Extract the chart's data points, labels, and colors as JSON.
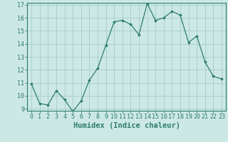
{
  "x": [
    0,
    1,
    2,
    3,
    4,
    5,
    6,
    7,
    8,
    9,
    10,
    11,
    12,
    13,
    14,
    15,
    16,
    17,
    18,
    19,
    20,
    21,
    22,
    23
  ],
  "y": [
    10.9,
    9.4,
    9.3,
    10.4,
    9.7,
    8.8,
    9.6,
    11.2,
    12.1,
    13.9,
    15.7,
    15.8,
    15.5,
    14.7,
    17.1,
    15.8,
    16.0,
    16.5,
    16.2,
    14.1,
    14.6,
    12.6,
    11.5,
    11.3
  ],
  "xlabel": "Humidex (Indice chaleur)",
  "line_color": "#2e7d6e",
  "marker_color": "#2e7d6e",
  "bg_color": "#cce8e5",
  "grid_color": "#aacfcc",
  "axis_color": "#2e7d6e",
  "tick_color": "#2e7d6e",
  "ylim": [
    9,
    17
  ],
  "xlim": [
    -0.5,
    23.5
  ],
  "yticks": [
    9,
    10,
    11,
    12,
    13,
    14,
    15,
    16,
    17
  ],
  "xticks": [
    0,
    1,
    2,
    3,
    4,
    5,
    6,
    7,
    8,
    9,
    10,
    11,
    12,
    13,
    14,
    15,
    16,
    17,
    18,
    19,
    20,
    21,
    22,
    23
  ],
  "xlabel_fontsize": 7.5,
  "tick_fontsize": 6.0
}
